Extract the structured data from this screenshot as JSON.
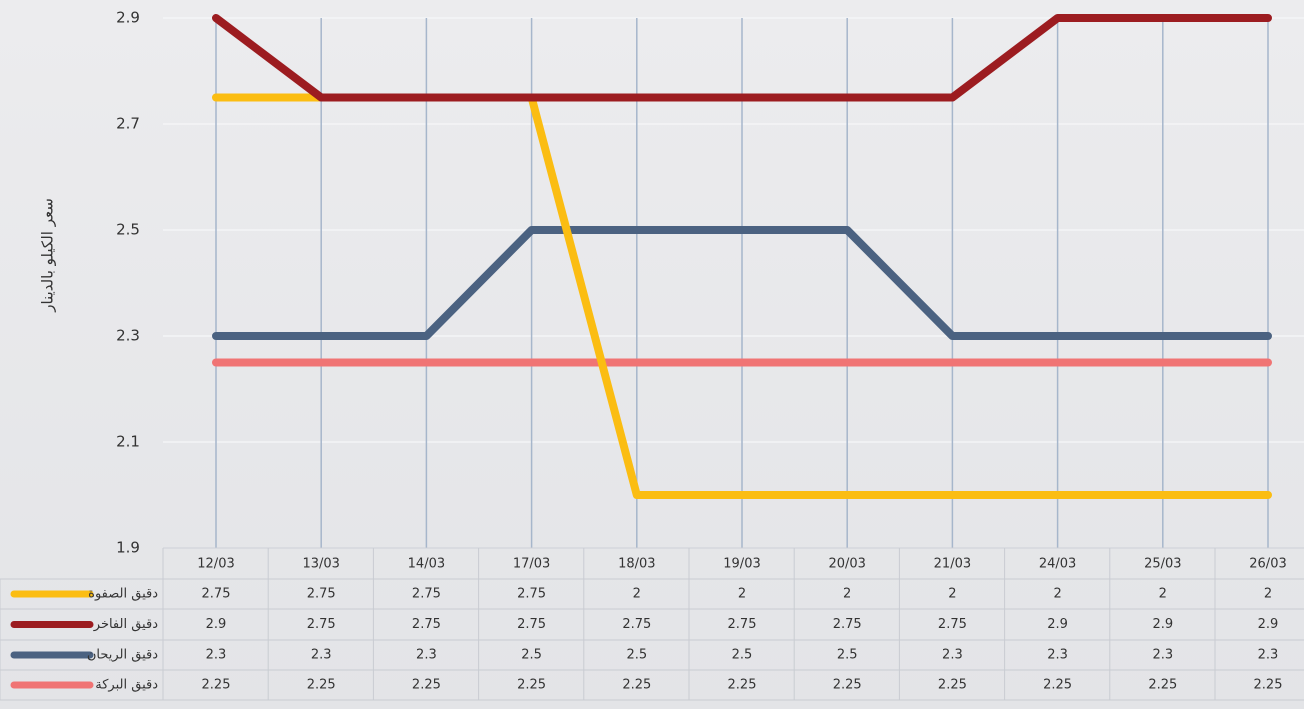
{
  "chart_data": {
    "type": "line",
    "y_label": "سعر الكيلو بالدينار",
    "categories": [
      "12/03",
      "13/03",
      "14/03",
      "17/03",
      "18/03",
      "19/03",
      "20/03",
      "21/03",
      "24/03",
      "25/03",
      "26/03"
    ],
    "series": [
      {
        "name": "دقيق الصفوة",
        "color": "#fbbd12",
        "values": [
          2.75,
          2.75,
          2.75,
          2.75,
          2,
          2,
          2,
          2,
          2,
          2,
          2
        ]
      },
      {
        "name": "دقيق الفاخر",
        "color": "#9c1c20",
        "values": [
          2.9,
          2.75,
          2.75,
          2.75,
          2.75,
          2.75,
          2.75,
          2.75,
          2.9,
          2.9,
          2.9
        ]
      },
      {
        "name": "دقيق الريحان",
        "color": "#4b6281",
        "values": [
          2.3,
          2.3,
          2.3,
          2.5,
          2.5,
          2.5,
          2.5,
          2.3,
          2.3,
          2.3,
          2.3
        ]
      },
      {
        "name": "دقيق البركة",
        "color": "#f07474",
        "values": [
          2.25,
          2.25,
          2.25,
          2.25,
          2.25,
          2.25,
          2.25,
          2.25,
          2.25,
          2.25,
          2.25
        ]
      }
    ],
    "ylim": [
      1.9,
      2.9
    ],
    "yticks": [
      1.9,
      2.1,
      2.3,
      2.5,
      2.7,
      2.9
    ],
    "grid": true
  }
}
